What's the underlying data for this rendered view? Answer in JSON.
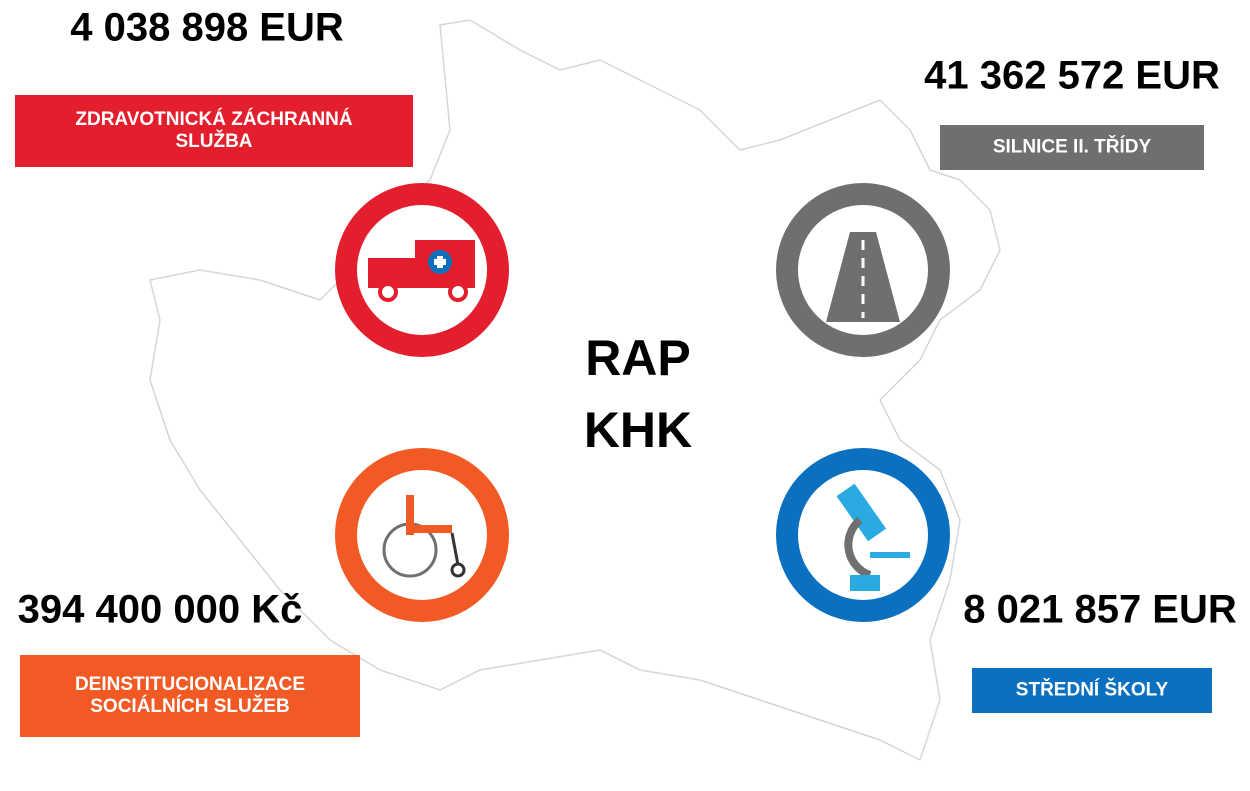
{
  "center": {
    "lines": [
      "RAP",
      "KHK"
    ]
  },
  "items": [
    {
      "amount": "4 038 898 EUR",
      "label": [
        "ZDRAVOTNICKÁ ZÁCHRANNÁ",
        "SLUŽBA"
      ],
      "color": "#e31e2d"
    },
    {
      "amount": "41 362 572 EUR",
      "label": [
        "SILNICE II. TŘÍDY"
      ],
      "color": "#6f6f6f"
    },
    {
      "amount": "394 400 000 Kč",
      "label": [
        "DEINSTITUCIONALIZACE",
        "SOCIÁLNÍCH SLUŽEB"
      ],
      "color": "#f15a24"
    },
    {
      "amount": "8 021 857 EUR",
      "label": [
        "STŘEDNÍ ŠKOLY"
      ],
      "color": "#0a70bf"
    }
  ]
}
